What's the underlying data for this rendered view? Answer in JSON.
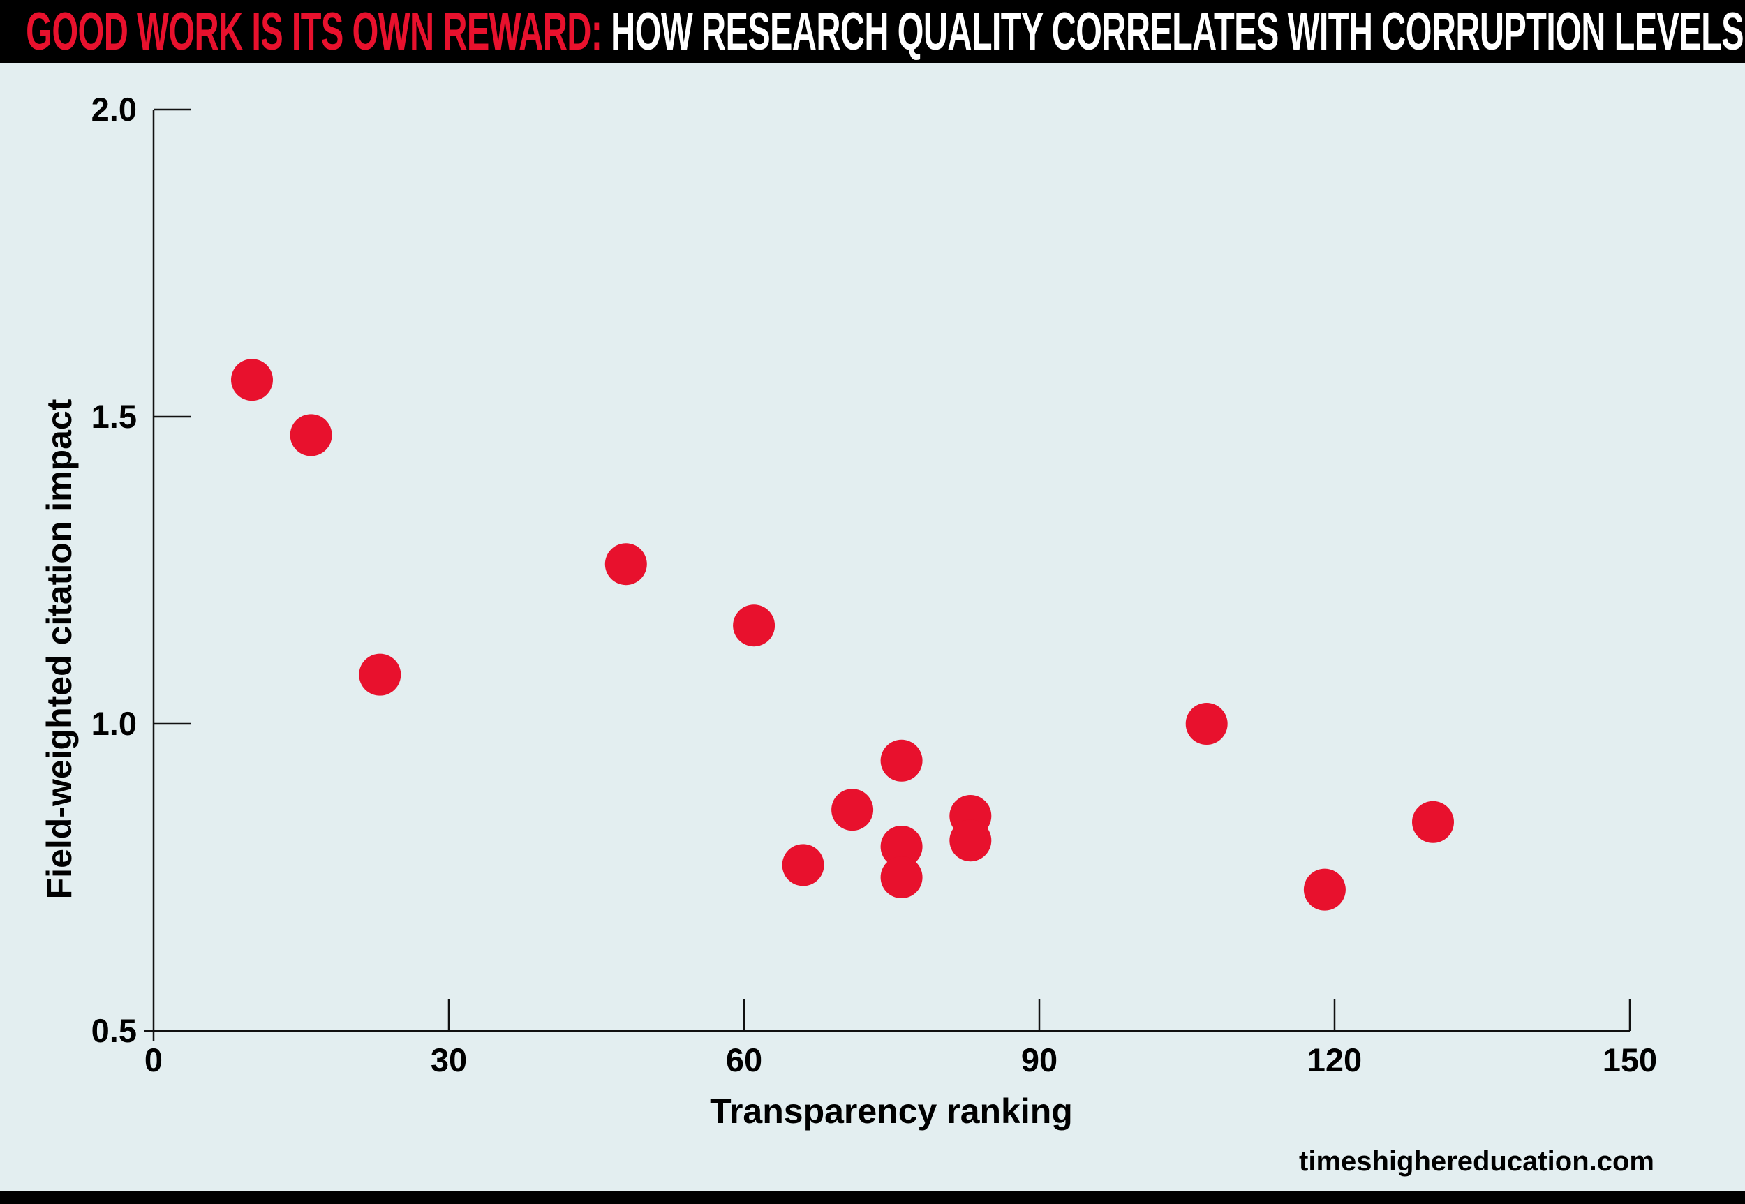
{
  "header": {
    "title_highlight": "GOOD WORK IS ITS OWN REWARD:",
    "title_main": "HOW RESEARCH QUALITY CORRELATES WITH CORRUPTION LEVELS"
  },
  "footer": {
    "credit": "timeshighereducation.com"
  },
  "colors": {
    "accent_red": "#e8112d",
    "background": "#e3eef0",
    "bar_black": "#000000",
    "axis": "#111111"
  },
  "chart_data": {
    "type": "scatter",
    "title": "GOOD WORK IS ITS OWN REWARD: HOW RESEARCH QUALITY CORRELATES WITH CORRUPTION LEVELS",
    "xlabel": "Transparency ranking",
    "ylabel": "Field-weighted citation impact",
    "xlim": [
      0,
      150
    ],
    "ylim": [
      0.5,
      2.0
    ],
    "x_ticks": [
      0,
      30,
      60,
      90,
      120,
      150
    ],
    "y_ticks": [
      0.5,
      1.0,
      1.5,
      2.0
    ],
    "grid": false,
    "legend": false,
    "marker_color": "#e8112d",
    "points": [
      {
        "x": 10,
        "y": 1.56
      },
      {
        "x": 16,
        "y": 1.47
      },
      {
        "x": 23,
        "y": 1.08
      },
      {
        "x": 48,
        "y": 1.26
      },
      {
        "x": 61,
        "y": 1.16
      },
      {
        "x": 66,
        "y": 0.77
      },
      {
        "x": 71,
        "y": 0.86
      },
      {
        "x": 76,
        "y": 0.94
      },
      {
        "x": 76,
        "y": 0.8
      },
      {
        "x": 76,
        "y": 0.75
      },
      {
        "x": 83,
        "y": 0.85
      },
      {
        "x": 83,
        "y": 0.81
      },
      {
        "x": 107,
        "y": 1.0
      },
      {
        "x": 119,
        "y": 0.73
      },
      {
        "x": 130,
        "y": 0.84
      }
    ]
  }
}
